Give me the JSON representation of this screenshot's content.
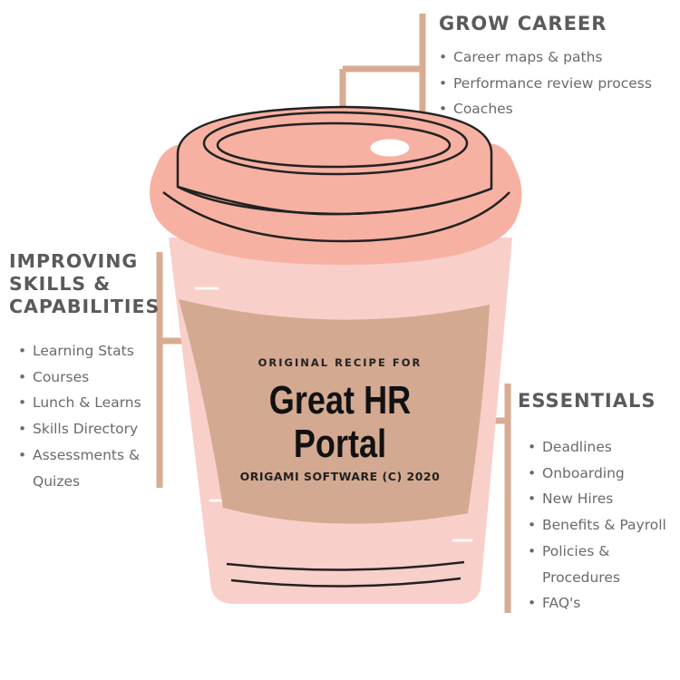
{
  "colors": {
    "lid": "#f7b1a2",
    "cup": "#f9cfca",
    "sleeve": "#d4a991",
    "connector": "#d8ab93",
    "heading_text": "#5a5a5a",
    "body_text": "#6a6a6a"
  },
  "grow_career": {
    "heading": "GROW CAREER",
    "items": [
      "Career maps & paths",
      "Performance review process",
      "Coaches"
    ]
  },
  "improving_skills": {
    "heading_lines": [
      "IMPROVING",
      "SKILLS &",
      "CAPABILITIES"
    ],
    "items": [
      "Learning Stats",
      "Courses",
      "Lunch & Learns",
      "Skills Directory",
      "Assessments &",
      "Quizes"
    ]
  },
  "essentials": {
    "heading": "ESSENTIALS",
    "items": [
      "Deadlines",
      "Onboarding",
      "New Hires",
      "Benefits & Payroll",
      "Policies &",
      "Procedures",
      "FAQ's"
    ]
  },
  "cup": {
    "recipe_label": "ORIGINAL RECIPE FOR",
    "title_lines": [
      "Great HR",
      "Portal"
    ],
    "company": "ORIGAMI SOFTWARE (C) 2020"
  }
}
